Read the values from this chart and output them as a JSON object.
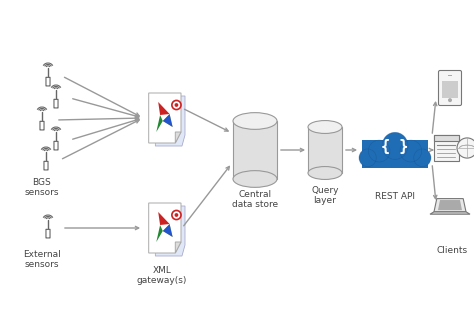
{
  "bg_color": "#ffffff",
  "labels": {
    "bgs_sensors": "BGS\nsensors",
    "external_sensors": "External\nsensors",
    "xml_gateway": "XML\ngateway(s)",
    "central_data_store": "Central\ndata store",
    "query_layer": "Query\nlayer",
    "rest_api": "REST API",
    "clients": "Clients"
  },
  "arrow_color": "#999999",
  "text_color": "#444444",
  "text_size": 6.5,
  "cloud_color": "#1f6db5",
  "sensor_color": "#666666",
  "cyl_face": "#e0e0e0",
  "cyl_edge": "#999999"
}
